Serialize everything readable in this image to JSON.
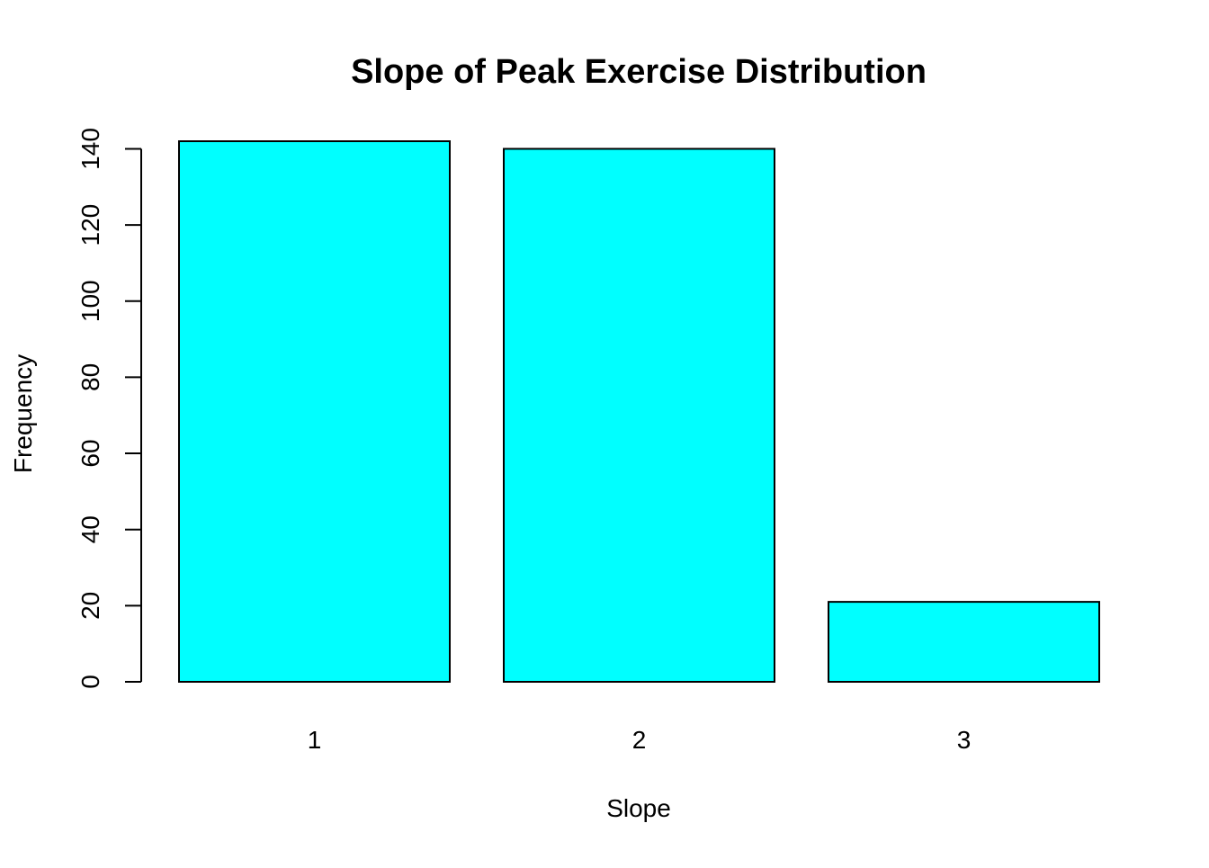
{
  "chart_data": {
    "type": "bar",
    "title": "Slope of Peak Exercise Distribution",
    "xlabel": "Slope",
    "ylabel": "Frequency",
    "categories": [
      "1",
      "2",
      "3"
    ],
    "values": [
      142,
      140,
      21
    ],
    "ylim": [
      0,
      142
    ],
    "yticks": [
      0,
      20,
      40,
      60,
      80,
      100,
      120,
      140
    ],
    "grid": false,
    "legend": "none",
    "colors": {
      "bar_fill": "#00FFFF",
      "bar_stroke": "#000000",
      "axis": "#000000",
      "background": "#FFFFFF"
    }
  }
}
